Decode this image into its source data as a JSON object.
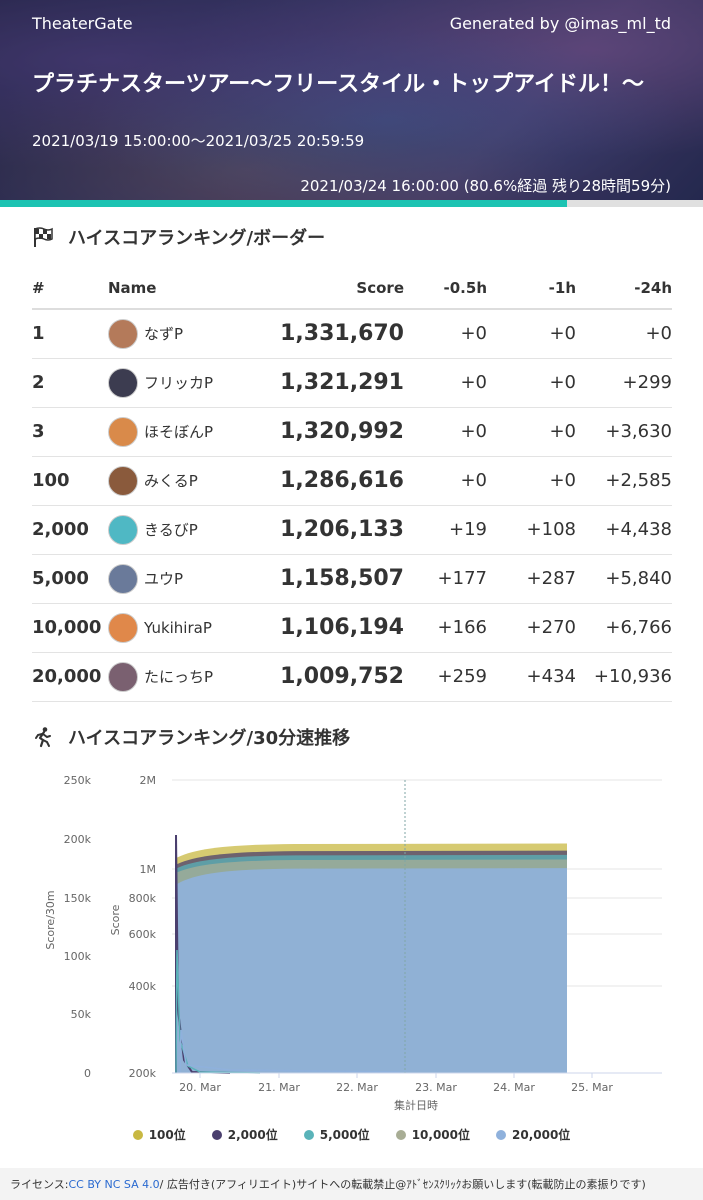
{
  "header": {
    "site_name": "TheaterGate",
    "generated_by": "Generated by @imas_ml_td",
    "event_title": "プラチナスターツアー〜フリースタイル・トップアイドル！〜",
    "period": "2021/03/19 15:00:00〜2021/03/25 20:59:59",
    "now_status": "2021/03/24 16:00:00 (80.6%経過 残り28時間59分)",
    "progress_fraction": 0.806
  },
  "ranking": {
    "title": "ハイスコアランキング/ボーダー",
    "icon": "checkered-flag-icon",
    "columns": [
      "#",
      "Name",
      "Score",
      "-0.5h",
      "-1h",
      "-24h"
    ],
    "rows": [
      {
        "rank": "1",
        "name": "なずP",
        "score": "1,331,670",
        "d05": "+0",
        "d1": "+0",
        "d24": "+0",
        "avatar_color": "#b47a5a"
      },
      {
        "rank": "2",
        "name": "フリッカP",
        "score": "1,321,291",
        "d05": "+0",
        "d1": "+0",
        "d24": "+299",
        "avatar_color": "#3c3c50"
      },
      {
        "rank": "3",
        "name": "ほそぼんP",
        "score": "1,320,992",
        "d05": "+0",
        "d1": "+0",
        "d24": "+3,630",
        "avatar_color": "#d98a4a"
      },
      {
        "rank": "100",
        "name": "みくるP",
        "score": "1,286,616",
        "d05": "+0",
        "d1": "+0",
        "d24": "+2,585",
        "avatar_color": "#8a5a3c"
      },
      {
        "rank": "2,000",
        "name": "きるびP",
        "score": "1,206,133",
        "d05": "+19",
        "d1": "+108",
        "d24": "+4,438",
        "avatar_color": "#4fb8c4"
      },
      {
        "rank": "5,000",
        "name": "ユウP",
        "score": "1,158,507",
        "d05": "+177",
        "d1": "+287",
        "d24": "+5,840",
        "avatar_color": "#6a7a9a"
      },
      {
        "rank": "10,000",
        "name": "YukihiraP",
        "score": "1,106,194",
        "d05": "+166",
        "d1": "+270",
        "d24": "+6,766",
        "avatar_color": "#e0884a"
      },
      {
        "rank": "20,000",
        "name": "たにっちP",
        "score": "1,009,752",
        "d05": "+259",
        "d1": "+434",
        "d24": "+10,936",
        "avatar_color": "#7a6070"
      }
    ]
  },
  "speed_section": {
    "title": "ハイスコアランキング/30分速推移",
    "icon": "running-person-icon"
  },
  "chart_data": {
    "type": "area",
    "xlabel": "集計日時",
    "ylabel_left": "Score/30m",
    "ylabel_right": "Score",
    "left_ticks": [
      "250k",
      "200k",
      "150k",
      "100k",
      "50k",
      "0"
    ],
    "left_ylim": [
      0,
      250000
    ],
    "right_ticks": [
      "2M",
      "1M",
      "800k",
      "600k",
      "400k",
      "200k"
    ],
    "right_ylim": [
      200000,
      2000000
    ],
    "x_ticks": [
      "20. Mar",
      "21. Mar",
      "22. Mar",
      "23. Mar",
      "24. Mar",
      "25. Mar"
    ],
    "grid": true,
    "legend_position": "bottom",
    "series": [
      {
        "name": "100位",
        "color": "#c8b842",
        "score_final": 1286616
      },
      {
        "name": "2,000位",
        "color": "#4a3f6e",
        "score_final": 1206133
      },
      {
        "name": "5,000位",
        "color": "#5ab3b9",
        "score_final": 1158507
      },
      {
        "name": "10,000位",
        "color": "#a8ad95",
        "score_final": 1106194
      },
      {
        "name": "20,000位",
        "color": "#8fb1dc",
        "score_final": 1009752
      }
    ]
  },
  "footer": {
    "license_label": "ライセンス: ",
    "license_link": "CC BY NC SA 4.0",
    "notice": " / 広告付き(アフィリエイト)サイトへの転載禁止@ｱﾄﾞｾﾝｽｸﾘｯｸお願いします(転載防止の素振りです)"
  }
}
